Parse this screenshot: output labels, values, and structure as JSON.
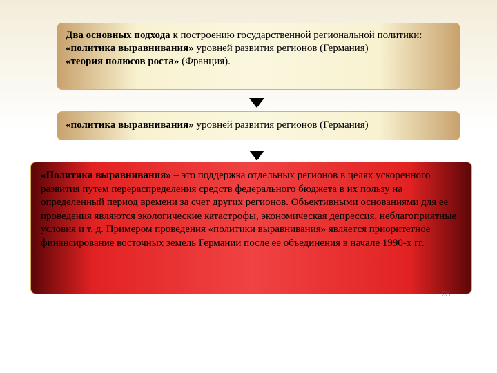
{
  "box1": {
    "title_underline": "Два основных подхода",
    "title_rest": " к построению государственной региональной политики:",
    "bullet1_bold": "«политика выравнивания»",
    "bullet1_rest": " уровней развития регионов (Германия)",
    "bullet2_bold": "«теория полюсов роста»",
    "bullet2_rest": " (Франция)."
  },
  "box2": {
    "bold": "«политика выравнивания»",
    "rest": " уровней развития регионов (Германия)"
  },
  "box3": {
    "bold": "«Политика выравнивания»",
    "body": " – это поддержка отдельных регионов в целях ускоренного развития путем перераспределения средств федерального бюджета в их пользу на определенный период времени за счет других регионов. Объективными основаниями для ее проведения являются экологические катастрофы, экономическая депрессия, неблагоприятные условия и т. д. Примером проведения «политики выравнивания» является приоритетное финансирование восточных земель Германии после ее объединения в начале 1990-х гг."
  },
  "page_number": "93",
  "colors": {
    "gold_gradient_edge": "#c8a26d",
    "gold_gradient_center": "#fbf7df",
    "red_gradient_edge": "#5b0608",
    "red_gradient_center": "#f04343",
    "border": "#d9b45c",
    "bg_top": "#f3ecd9"
  }
}
